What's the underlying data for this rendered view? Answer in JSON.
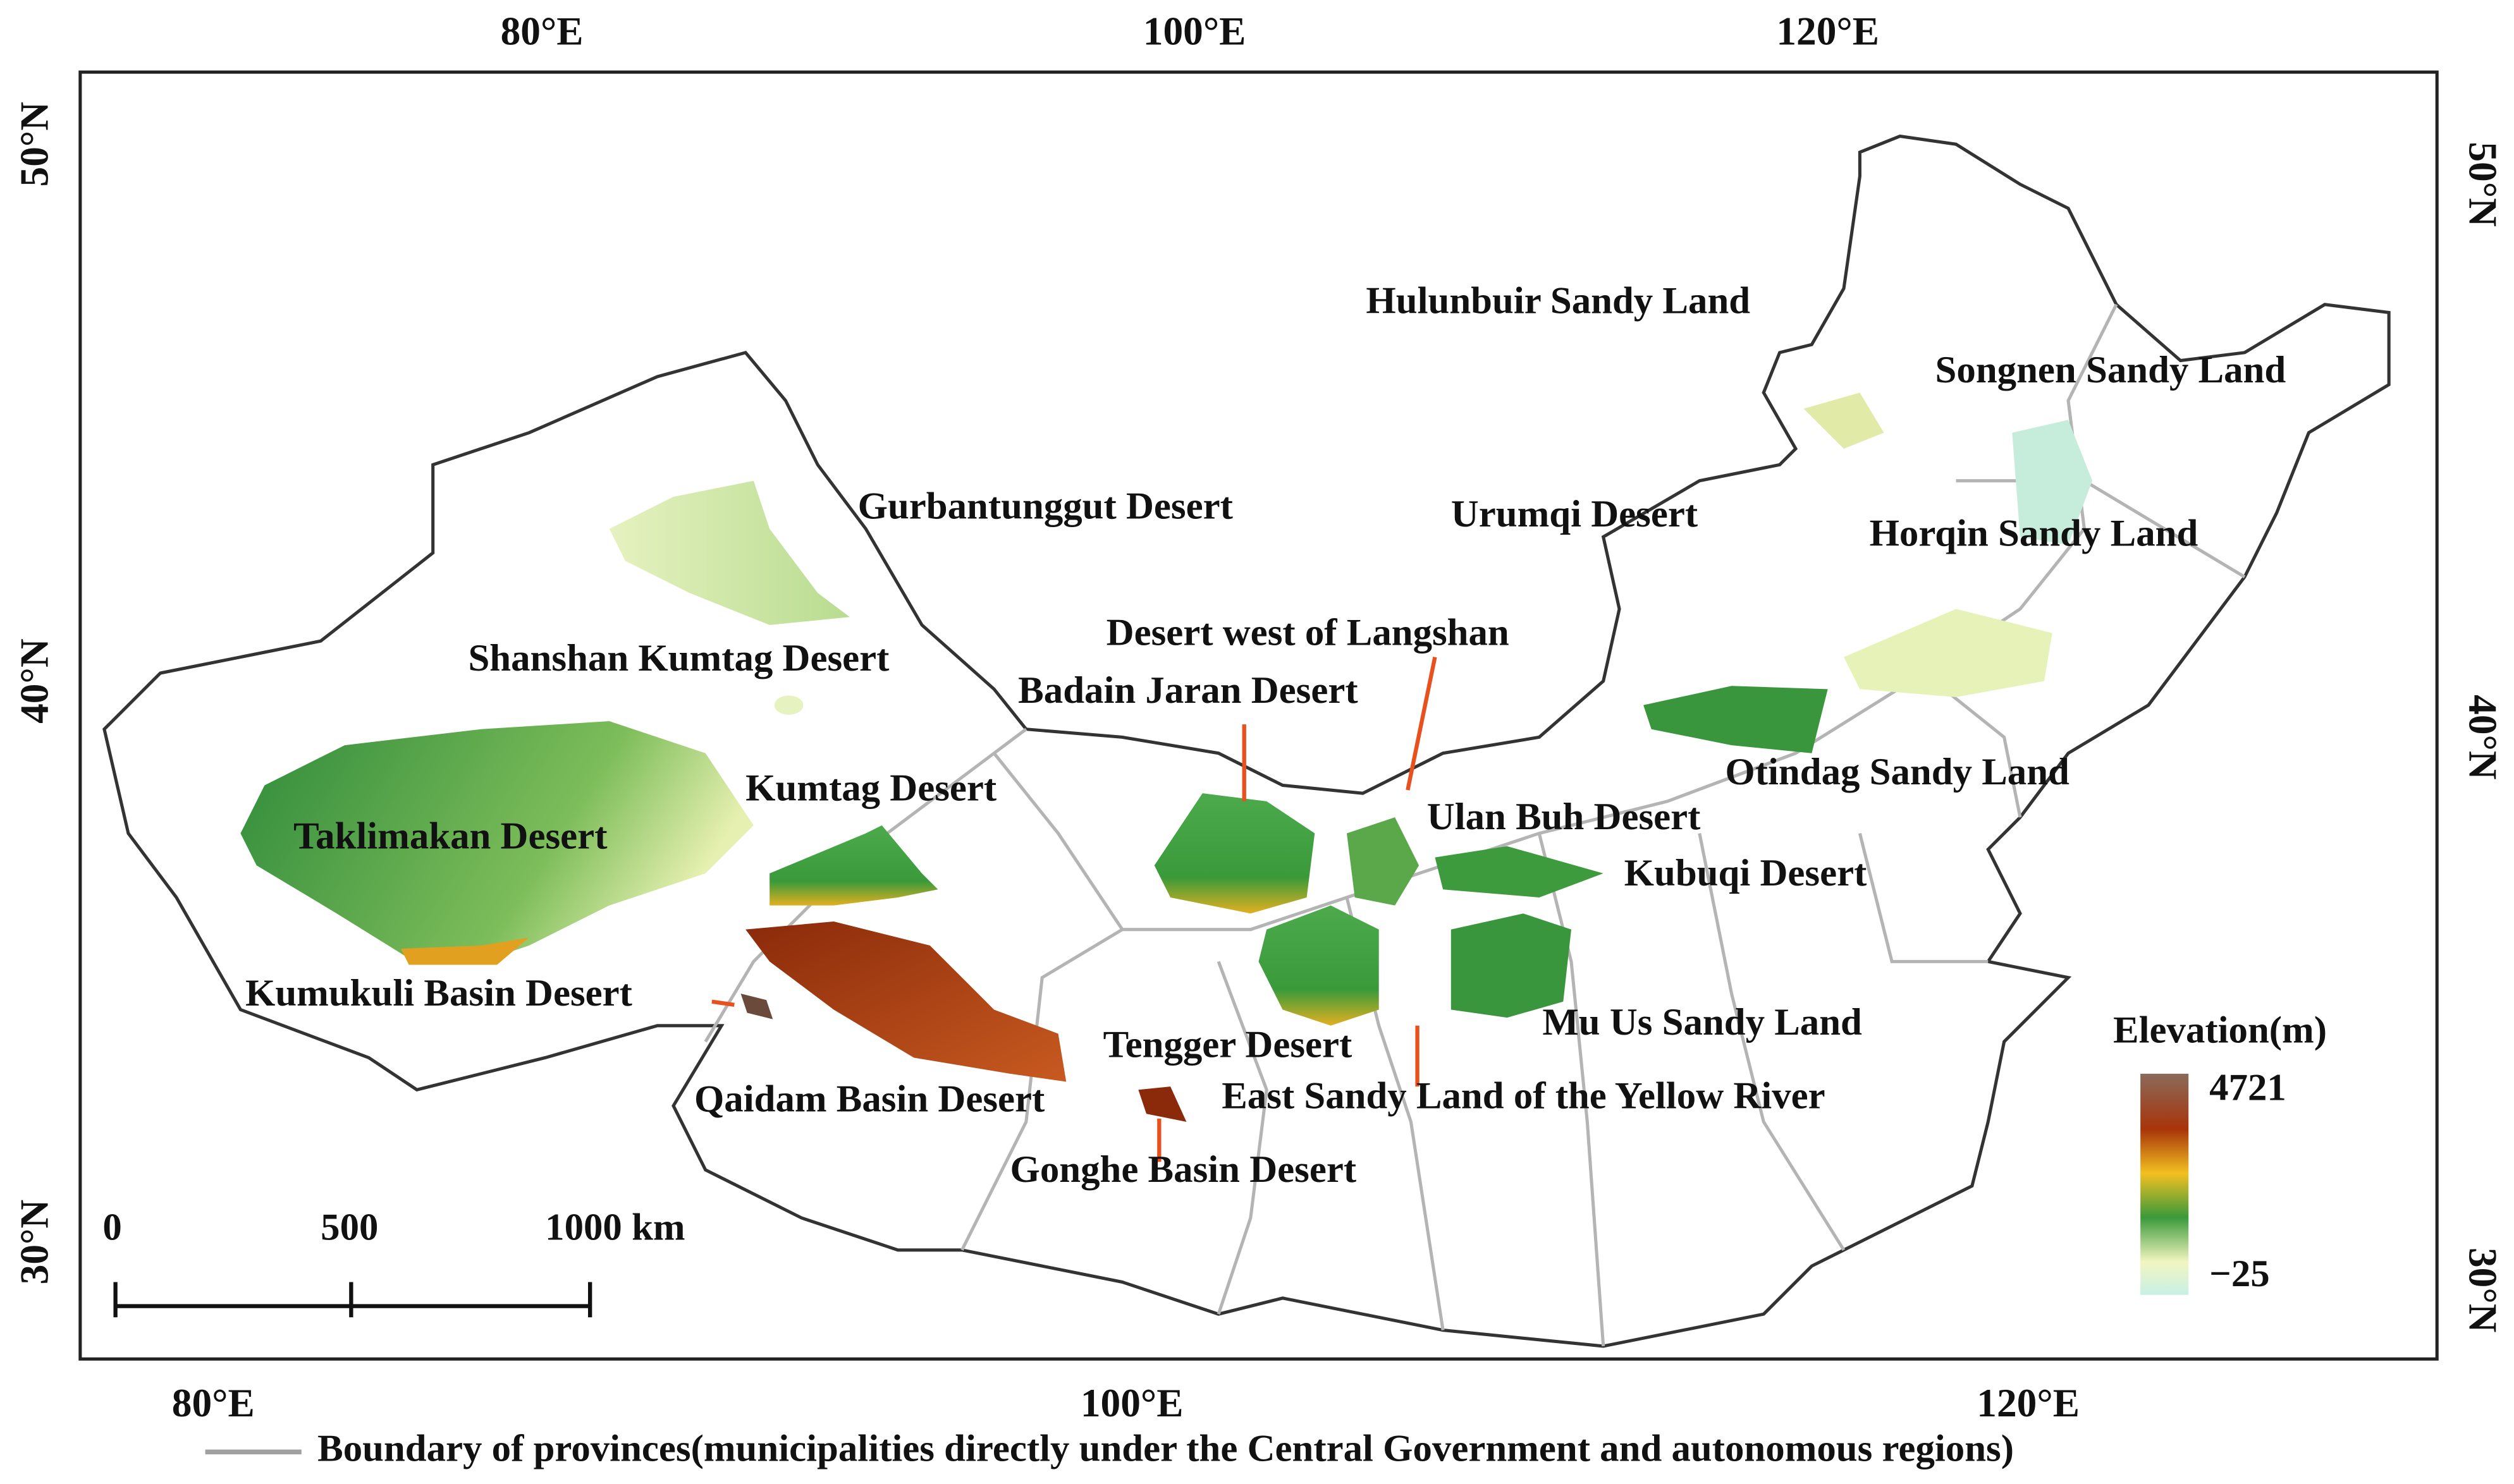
{
  "axes": {
    "top": [
      "80°E",
      "100°E",
      "120°E"
    ],
    "bottom": [
      "80°E",
      "100°E",
      "120°E"
    ],
    "left": [
      "50°N",
      "40°N",
      "30°N"
    ],
    "right": [
      "50°N",
      "40°N",
      "30°N"
    ]
  },
  "labels": [
    "Hulunbuir Sandy Land",
    "Songnen Sandy Land",
    "Gurbantunggut Desert",
    "Urumqi Desert",
    "Horqin Sandy Land",
    "Desert west of Langshan",
    "Shanshan Kumtag Desert",
    "Badain Jaran Desert",
    "Otindag Sandy Land",
    "Kumtag Desert",
    "Ulan Buh Desert",
    "Taklimakan Desert",
    "Kubuqi Desert",
    "Kumukuli Basin Desert",
    "Mu Us Sandy Land",
    "Tengger Desert",
    "Qaidam Basin Desert",
    "East Sandy Land of the Yellow River",
    "Gonghe Basin Desert"
  ],
  "legend": {
    "title": "Elevation(m)",
    "max": "4721",
    "min": "−25"
  },
  "scale_bar": [
    "0",
    "500",
    "1000 km"
  ],
  "footer": "Boundary of provinces(municipalities directly under the Central Government and autonomous regions)"
}
